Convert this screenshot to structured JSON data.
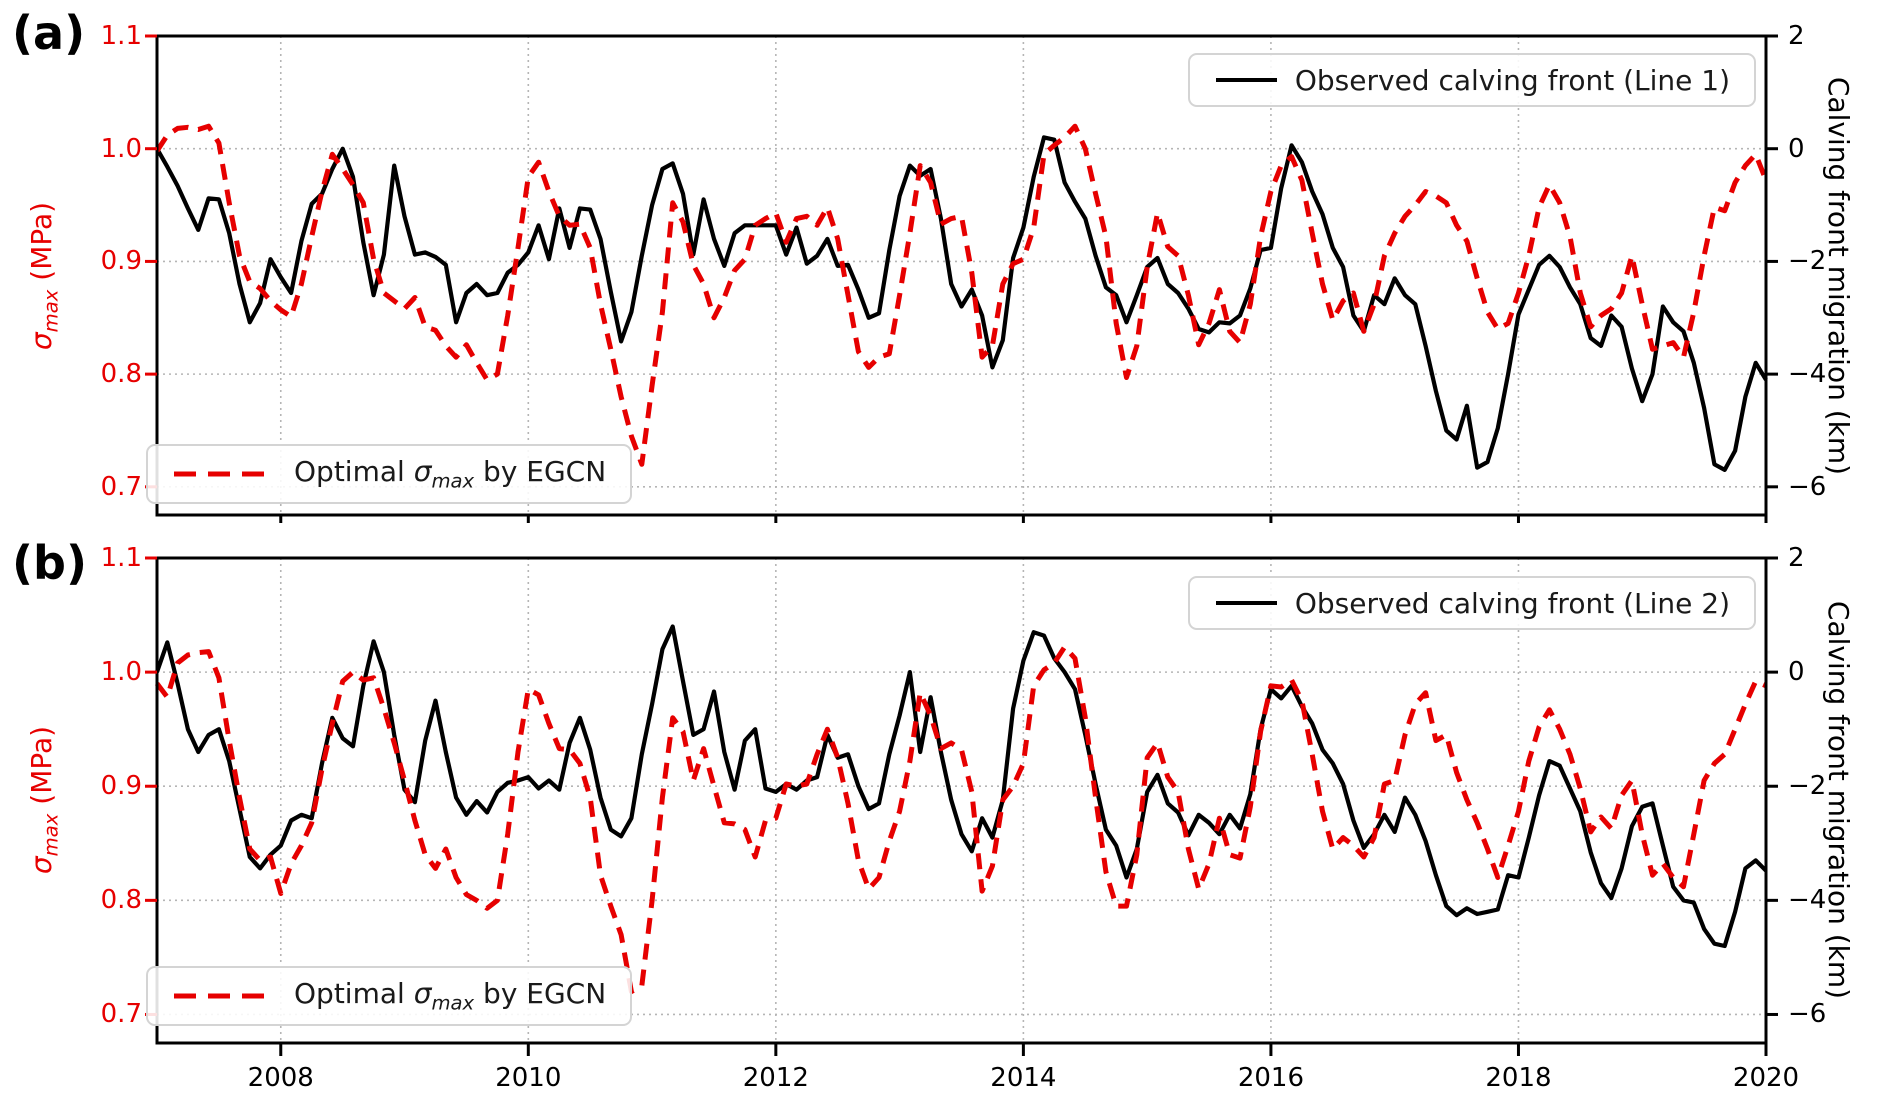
{
  "figure": {
    "background": "#ffffff",
    "accent_red": "#e60000",
    "line_black": "#000000",
    "grid_color": "#b5b5b5",
    "panel_a_letter": "(a)",
    "panel_b_letter": "(b)",
    "legend_a_top": "Observed calving front (Line 1)",
    "legend_b_top": "Observed calving front (Line 2)",
    "legend_bottom_pre": "Optimal ",
    "legend_bottom_sigma": "σ",
    "legend_bottom_sub": "max",
    "legend_bottom_post": " by EGCN",
    "left_axis_sigma": "σ",
    "left_axis_sub": "max",
    "left_axis_unit": " (MPa)",
    "right_axis_label": "Calving front migration (km)",
    "x_tick_labels": [
      "2008",
      "2010",
      "2012",
      "2014",
      "2016",
      "2018",
      "2020"
    ],
    "left_tick_labels": [
      "1.1",
      "1.0",
      "0.9",
      "0.8",
      "0.7"
    ],
    "right_tick_labels": [
      "2",
      "0",
      "−2",
      "−4",
      "−6"
    ]
  },
  "chart_data": [
    {
      "type": "line",
      "panel": "a",
      "xlabel": "",
      "x_start": 2007.0,
      "x_end": 2020.0,
      "x_points_monthly": 157,
      "xlim": [
        2007,
        2020
      ],
      "x_tick_values": [
        2008,
        2010,
        2012,
        2014,
        2016,
        2018,
        2020
      ],
      "ylim_left_MPa": [
        0.675,
        1.1
      ],
      "left_tick_values": [
        1.1,
        1.0,
        0.9,
        0.8,
        0.7
      ],
      "ylim_right_km": [
        -6.5,
        2
      ],
      "right_tick_values": [
        2,
        0,
        -2,
        -4,
        -6
      ],
      "grid": true,
      "legend_top_position": "upper right",
      "legend_bottom_position": "lower left",
      "series": [
        {
          "name": "Observed calving front (Line 1)",
          "axis": "right",
          "unit": "km",
          "color": "#000000",
          "style": "solid",
          "values": [
            0.0,
            -0.32,
            -0.66,
            -1.06,
            -1.44,
            -0.88,
            -0.9,
            -1.5,
            -2.4,
            -3.08,
            -2.74,
            -1.96,
            -2.28,
            -2.56,
            -1.64,
            -0.98,
            -0.8,
            -0.36,
            0.0,
            -0.5,
            -1.66,
            -2.6,
            -1.88,
            -0.3,
            -1.2,
            -1.88,
            -1.84,
            -1.92,
            -2.06,
            -3.08,
            -2.56,
            -2.4,
            -2.6,
            -2.56,
            -2.2,
            -2.06,
            -1.84,
            -1.36,
            -1.96,
            -1.06,
            -1.76,
            -1.06,
            -1.08,
            -1.6,
            -2.54,
            -3.42,
            -2.9,
            -1.9,
            -1.0,
            -0.36,
            -0.26,
            -0.8,
            -1.88,
            -0.9,
            -1.6,
            -2.08,
            -1.5,
            -1.36,
            -1.36,
            -1.36,
            -1.36,
            -1.88,
            -1.4,
            -2.04,
            -1.9,
            -1.6,
            -2.08,
            -2.06,
            -2.5,
            -3.0,
            -2.92,
            -1.8,
            -0.84,
            -0.3,
            -0.48,
            -0.36,
            -1.24,
            -2.4,
            -2.8,
            -2.5,
            -2.96,
            -3.88,
            -3.4,
            -1.94,
            -1.4,
            -0.5,
            0.2,
            0.16,
            -0.6,
            -0.94,
            -1.24,
            -1.9,
            -2.46,
            -2.6,
            -3.08,
            -2.6,
            -2.1,
            -1.94,
            -2.4,
            -2.56,
            -2.84,
            -3.2,
            -3.26,
            -3.08,
            -3.1,
            -2.96,
            -2.48,
            -1.8,
            -1.76,
            -0.7,
            0.06,
            -0.24,
            -0.76,
            -1.16,
            -1.76,
            -2.1,
            -2.96,
            -3.24,
            -2.6,
            -2.76,
            -2.3,
            -2.6,
            -2.76,
            -3.5,
            -4.3,
            -5.0,
            -5.16,
            -4.56,
            -5.66,
            -5.56,
            -4.96,
            -4.0,
            -2.94,
            -2.5,
            -2.06,
            -1.9,
            -2.1,
            -2.46,
            -2.76,
            -3.36,
            -3.5,
            -2.96,
            -3.16,
            -3.9,
            -4.48,
            -4.0,
            -2.8,
            -3.08,
            -3.24,
            -3.8,
            -4.6,
            -5.6,
            -5.7,
            -5.36,
            -4.4,
            -3.8,
            -4.1
          ]
        },
        {
          "name": "Optimal σmax by EGCN",
          "axis": "left",
          "unit": "MPa",
          "color": "#e60000",
          "style": "dashed",
          "values": [
            0.998,
            1.012,
            1.018,
            1.019,
            1.017,
            1.02,
            1.005,
            0.952,
            0.905,
            0.882,
            0.876,
            0.865,
            0.857,
            0.851,
            0.88,
            0.922,
            0.962,
            0.995,
            0.982,
            0.968,
            0.952,
            0.902,
            0.872,
            0.865,
            0.858,
            0.868,
            0.842,
            0.839,
            0.825,
            0.815,
            0.826,
            0.81,
            0.795,
            0.8,
            0.852,
            0.912,
            0.975,
            0.988,
            0.962,
            0.94,
            0.932,
            0.933,
            0.912,
            0.862,
            0.822,
            0.78,
            0.745,
            0.72,
            0.79,
            0.855,
            0.952,
            0.935,
            0.897,
            0.88,
            0.85,
            0.868,
            0.892,
            0.902,
            0.932,
            0.938,
            0.943,
            0.917,
            0.938,
            0.94,
            0.932,
            0.948,
            0.92,
            0.87,
            0.82,
            0.806,
            0.815,
            0.818,
            0.87,
            0.925,
            0.985,
            0.97,
            0.933,
            0.938,
            0.94,
            0.89,
            0.815,
            0.825,
            0.88,
            0.898,
            0.902,
            0.93,
            0.995,
            1.003,
            1.01,
            1.02,
            1.0,
            0.96,
            0.922,
            0.845,
            0.797,
            0.825,
            0.895,
            0.943,
            0.913,
            0.905,
            0.87,
            0.826,
            0.845,
            0.875,
            0.838,
            0.828,
            0.862,
            0.922,
            0.962,
            0.985,
            0.993,
            0.972,
            0.925,
            0.88,
            0.848,
            0.865,
            0.872,
            0.838,
            0.862,
            0.905,
            0.925,
            0.94,
            0.95,
            0.962,
            0.958,
            0.952,
            0.932,
            0.918,
            0.885,
            0.855,
            0.84,
            0.845,
            0.872,
            0.905,
            0.948,
            0.968,
            0.952,
            0.922,
            0.872,
            0.842,
            0.852,
            0.858,
            0.872,
            0.905,
            0.862,
            0.822,
            0.825,
            0.828,
            0.815,
            0.855,
            0.905,
            0.948,
            0.945,
            0.97,
            0.985,
            0.995,
            0.972
          ]
        }
      ]
    },
    {
      "type": "line",
      "panel": "b",
      "xlabel": "",
      "x_start": 2007.0,
      "x_end": 2020.0,
      "x_points_monthly": 157,
      "xlim": [
        2007,
        2020
      ],
      "x_tick_values": [
        2008,
        2010,
        2012,
        2014,
        2016,
        2018,
        2020
      ],
      "ylim_left_MPa": [
        0.675,
        1.1
      ],
      "left_tick_values": [
        1.1,
        1.0,
        0.9,
        0.8,
        0.7
      ],
      "ylim_right_km": [
        -6.5,
        2
      ],
      "right_tick_values": [
        2,
        0,
        -2,
        -4,
        -6
      ],
      "grid": true,
      "legend_top_position": "upper right",
      "legend_bottom_position": "lower left",
      "series": [
        {
          "name": "Observed calving front (Line 2)",
          "axis": "right",
          "unit": "km",
          "color": "#000000",
          "style": "solid",
          "values": [
            0.0,
            0.52,
            -0.2,
            -1.0,
            -1.4,
            -1.1,
            -1.0,
            -1.56,
            -2.4,
            -3.24,
            -3.44,
            -3.2,
            -3.04,
            -2.6,
            -2.5,
            -2.56,
            -1.6,
            -0.8,
            -1.16,
            -1.3,
            -0.24,
            0.54,
            0.0,
            -1.1,
            -2.06,
            -2.28,
            -1.2,
            -0.5,
            -1.4,
            -2.2,
            -2.5,
            -2.26,
            -2.46,
            -2.1,
            -1.94,
            -1.9,
            -1.84,
            -2.04,
            -1.9,
            -2.06,
            -1.24,
            -0.8,
            -1.36,
            -2.2,
            -2.76,
            -2.88,
            -2.56,
            -1.44,
            -0.56,
            0.4,
            0.8,
            -0.16,
            -1.1,
            -1.0,
            -0.34,
            -1.4,
            -2.06,
            -1.2,
            -1.0,
            -2.04,
            -2.1,
            -1.96,
            -2.06,
            -1.9,
            -1.84,
            -1.1,
            -1.5,
            -1.44,
            -2.0,
            -2.4,
            -2.3,
            -1.44,
            -0.76,
            0.0,
            -1.4,
            -0.44,
            -1.4,
            -2.24,
            -2.84,
            -3.14,
            -2.56,
            -2.9,
            -2.24,
            -0.64,
            0.2,
            0.7,
            0.64,
            0.24,
            0.0,
            -0.3,
            -1.1,
            -1.96,
            -2.76,
            -3.04,
            -3.6,
            -3.1,
            -2.1,
            -1.8,
            -2.3,
            -2.46,
            -2.86,
            -2.5,
            -2.64,
            -2.84,
            -2.5,
            -2.74,
            -2.14,
            -1.0,
            -0.3,
            -0.46,
            -0.24,
            -0.6,
            -0.9,
            -1.36,
            -1.6,
            -1.96,
            -2.6,
            -3.08,
            -2.84,
            -2.5,
            -2.8,
            -2.2,
            -2.5,
            -2.96,
            -3.56,
            -4.1,
            -4.26,
            -4.14,
            -4.24,
            -4.2,
            -4.16,
            -3.56,
            -3.6,
            -2.9,
            -2.16,
            -1.56,
            -1.64,
            -2.04,
            -2.44,
            -3.16,
            -3.7,
            -3.96,
            -3.44,
            -2.7,
            -2.36,
            -2.3,
            -3.04,
            -3.76,
            -4.0,
            -4.04,
            -4.5,
            -4.76,
            -4.8,
            -4.2,
            -3.44,
            -3.3,
            -3.48
          ]
        },
        {
          "name": "Optimal σmax by EGCN",
          "axis": "left",
          "unit": "MPa",
          "color": "#e60000",
          "style": "dashed",
          "values": [
            0.99,
            0.978,
            1.008,
            1.015,
            1.017,
            1.018,
            0.995,
            0.94,
            0.89,
            0.845,
            0.835,
            0.838,
            0.806,
            0.832,
            0.848,
            0.868,
            0.915,
            0.955,
            0.992,
            1.0,
            0.993,
            0.995,
            0.968,
            0.938,
            0.905,
            0.87,
            0.84,
            0.828,
            0.845,
            0.82,
            0.805,
            0.8,
            0.793,
            0.8,
            0.858,
            0.93,
            0.985,
            0.98,
            0.955,
            0.933,
            0.932,
            0.92,
            0.89,
            0.822,
            0.795,
            0.77,
            0.72,
            0.725,
            0.8,
            0.89,
            0.96,
            0.948,
            0.905,
            0.933,
            0.9,
            0.868,
            0.867,
            0.862,
            0.838,
            0.87,
            0.872,
            0.902,
            0.9,
            0.902,
            0.928,
            0.95,
            0.925,
            0.885,
            0.835,
            0.81,
            0.82,
            0.852,
            0.878,
            0.922,
            0.982,
            0.962,
            0.933,
            0.938,
            0.932,
            0.895,
            0.808,
            0.83,
            0.888,
            0.9,
            0.92,
            0.988,
            1.002,
            1.008,
            1.022,
            1.012,
            0.96,
            0.89,
            0.825,
            0.795,
            0.795,
            0.84,
            0.925,
            0.938,
            0.908,
            0.895,
            0.845,
            0.81,
            0.832,
            0.872,
            0.84,
            0.837,
            0.882,
            0.948,
            0.988,
            0.987,
            0.993,
            0.975,
            0.928,
            0.878,
            0.845,
            0.855,
            0.848,
            0.838,
            0.855,
            0.902,
            0.905,
            0.945,
            0.972,
            0.982,
            0.94,
            0.945,
            0.912,
            0.888,
            0.868,
            0.845,
            0.82,
            0.848,
            0.878,
            0.922,
            0.952,
            0.967,
            0.95,
            0.928,
            0.898,
            0.86,
            0.873,
            0.863,
            0.892,
            0.905,
            0.858,
            0.822,
            0.832,
            0.82,
            0.812,
            0.858,
            0.905,
            0.92,
            0.928,
            0.95,
            0.972,
            0.992,
            0.988
          ]
        }
      ]
    }
  ]
}
